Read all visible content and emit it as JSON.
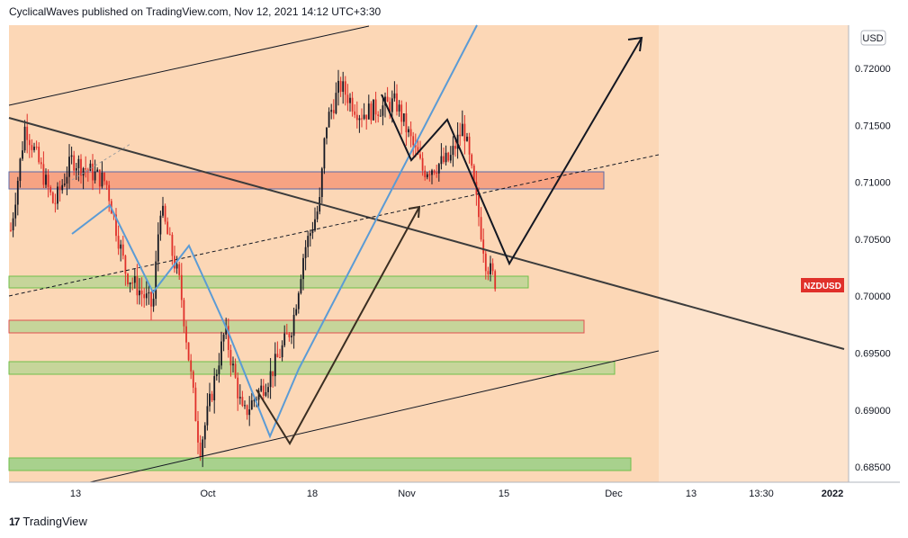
{
  "header": {
    "publisher_line": "CyclicalWaves published on TradingView.com, Nov 12, 2021 14:12 UTC+3:30"
  },
  "footer": {
    "brand": "TradingView",
    "logo_glyph": "17"
  },
  "chart_data": {
    "type": "candlestick",
    "symbol": "NZDUSD",
    "currency": "USD",
    "last_price": 0.7012,
    "y_axis": {
      "ticks": [
        "0.72000",
        "0.71500",
        "0.71000",
        "0.70500",
        "0.70000",
        "0.69500",
        "0.69000",
        "0.68500"
      ],
      "range": [
        0.6825,
        0.724
      ]
    },
    "x_axis": {
      "ticks": [
        "13",
        "Oct",
        "18",
        "Nov",
        "15",
        "Dec",
        "13",
        "13:30",
        "2022"
      ]
    },
    "zones": [
      {
        "low": 0.7093,
        "high": 0.711,
        "color": "#f7a383"
      },
      {
        "low": 0.7008,
        "high": 0.7018,
        "color": "#c6d59a"
      },
      {
        "low": 0.697,
        "high": 0.6982,
        "color": "#c6d59a"
      },
      {
        "low": 0.6934,
        "high": 0.6946,
        "color": "#c6d59a"
      },
      {
        "low": 0.685,
        "high": 0.6862,
        "color": "#a8d18d"
      }
    ],
    "colors": {
      "up": "#131722",
      "down": "#e0302a",
      "background": "#fde3cc",
      "label_badge": "#e0302a"
    }
  }
}
